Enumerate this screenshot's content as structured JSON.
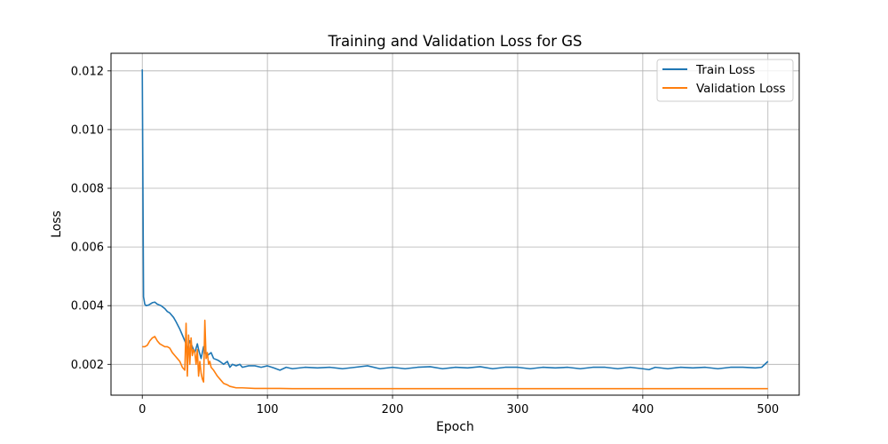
{
  "chart_data": {
    "type": "line",
    "title": "Training and Validation Loss for GS",
    "xlabel": "Epoch",
    "ylabel": "Loss",
    "xlim": [
      -25,
      525
    ],
    "ylim": [
      0.00095,
      0.0126
    ],
    "x_ticks": [
      0,
      100,
      200,
      300,
      400,
      500
    ],
    "x_tick_labels": [
      "0",
      "100",
      "200",
      "300",
      "400",
      "500"
    ],
    "y_ticks": [
      0.002,
      0.004,
      0.006,
      0.008,
      0.01,
      0.012
    ],
    "y_tick_labels": [
      "0.002",
      "0.004",
      "0.006",
      "0.008",
      "0.010",
      "0.012"
    ],
    "grid": true,
    "legend_position": "top-right",
    "series": [
      {
        "name": "Train Loss",
        "color": "#1f77b4",
        "x": [
          0,
          1,
          2,
          3,
          5,
          8,
          10,
          12,
          15,
          18,
          20,
          22,
          25,
          27,
          30,
          32,
          35,
          36,
          38,
          40,
          42,
          44,
          45,
          47,
          49,
          50,
          52,
          55,
          57,
          60,
          62,
          65,
          68,
          70,
          72,
          75,
          78,
          80,
          85,
          90,
          95,
          100,
          105,
          110,
          115,
          120,
          130,
          140,
          150,
          160,
          170,
          180,
          190,
          200,
          210,
          220,
          230,
          240,
          250,
          260,
          270,
          280,
          290,
          300,
          310,
          320,
          330,
          340,
          350,
          360,
          370,
          380,
          390,
          400,
          405,
          410,
          420,
          430,
          440,
          450,
          460,
          470,
          480,
          490,
          495,
          500
        ],
        "y": [
          0.01205,
          0.0043,
          0.00405,
          0.004,
          0.00402,
          0.0041,
          0.00412,
          0.00405,
          0.004,
          0.0039,
          0.0038,
          0.00375,
          0.0036,
          0.00345,
          0.0032,
          0.003,
          0.0027,
          0.0025,
          0.0028,
          0.0026,
          0.0024,
          0.0027,
          0.0025,
          0.0022,
          0.0026,
          0.0024,
          0.0023,
          0.0024,
          0.0022,
          0.00215,
          0.0021,
          0.002,
          0.0021,
          0.0019,
          0.002,
          0.00195,
          0.002,
          0.0019,
          0.00195,
          0.00195,
          0.0019,
          0.00195,
          0.00188,
          0.0018,
          0.0019,
          0.00185,
          0.0019,
          0.00188,
          0.0019,
          0.00185,
          0.0019,
          0.00195,
          0.00185,
          0.0019,
          0.00185,
          0.0019,
          0.00192,
          0.00185,
          0.0019,
          0.00188,
          0.00192,
          0.00185,
          0.0019,
          0.0019,
          0.00185,
          0.0019,
          0.00188,
          0.0019,
          0.00185,
          0.0019,
          0.0019,
          0.00185,
          0.0019,
          0.00185,
          0.00182,
          0.0019,
          0.00185,
          0.0019,
          0.00188,
          0.0019,
          0.00185,
          0.0019,
          0.0019,
          0.00188,
          0.0019,
          0.0021
        ]
      },
      {
        "name": "Validation Loss",
        "color": "#ff7f0e",
        "x": [
          0,
          2,
          4,
          6,
          8,
          10,
          12,
          14,
          16,
          18,
          20,
          22,
          24,
          26,
          28,
          30,
          32,
          34,
          35,
          36,
          37,
          38,
          39,
          40,
          41,
          42,
          43,
          44,
          45,
          46,
          47,
          48,
          49,
          50,
          51,
          52,
          53,
          54,
          55,
          57,
          60,
          62,
          65,
          68,
          70,
          75,
          80,
          90,
          100,
          110,
          120,
          130,
          150,
          200,
          250,
          300,
          350,
          400,
          450,
          500
        ],
        "y": [
          0.0026,
          0.0026,
          0.00265,
          0.0028,
          0.0029,
          0.00295,
          0.0028,
          0.0027,
          0.00265,
          0.0026,
          0.0026,
          0.00255,
          0.0024,
          0.0023,
          0.0022,
          0.0021,
          0.0019,
          0.0018,
          0.0034,
          0.0016,
          0.003,
          0.002,
          0.0029,
          0.0023,
          0.0025,
          0.0024,
          0.002,
          0.0025,
          0.0016,
          0.0021,
          0.0017,
          0.0015,
          0.0014,
          0.0035,
          0.0022,
          0.0024,
          0.002,
          0.0021,
          0.0019,
          0.0018,
          0.0016,
          0.0015,
          0.00135,
          0.0013,
          0.00125,
          0.0012,
          0.0012,
          0.00118,
          0.00118,
          0.00118,
          0.00117,
          0.00117,
          0.00117,
          0.00117,
          0.00117,
          0.00117,
          0.00117,
          0.00117,
          0.00117,
          0.00117
        ]
      }
    ]
  }
}
